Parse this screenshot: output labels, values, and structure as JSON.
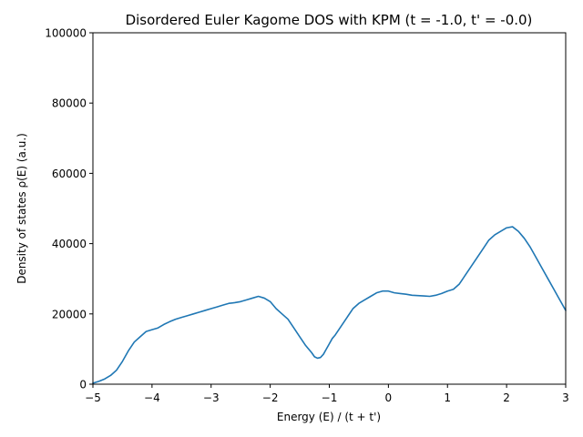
{
  "chart_data": {
    "type": "line",
    "title": "Disordered Euler Kagome DOS with KPM (t = -1.0, t' = -0.0)",
    "xlabel": "Energy (E) / (t + t')",
    "ylabel": "Density of states ρ(E) (a.u.)",
    "xlim": [
      -5,
      3
    ],
    "ylim": [
      0,
      100000
    ],
    "xticks": [
      -5,
      -4,
      -3,
      -2,
      -1,
      0,
      1,
      2,
      3
    ],
    "xtick_labels": [
      "−5",
      "−4",
      "−3",
      "−2",
      "−1",
      "0",
      "1",
      "2",
      "3"
    ],
    "yticks": [
      0,
      20000,
      40000,
      60000,
      80000,
      100000
    ],
    "ytick_labels": [
      "0",
      "20000",
      "40000",
      "60000",
      "80000",
      "100000"
    ],
    "grid": false,
    "series": [
      {
        "color": "#1f77b4",
        "x": [
          -5.0,
          -4.9,
          -4.8,
          -4.7,
          -4.6,
          -4.5,
          -4.4,
          -4.3,
          -4.2,
          -4.1,
          -4.0,
          -3.9,
          -3.8,
          -3.7,
          -3.6,
          -3.5,
          -3.4,
          -3.3,
          -3.2,
          -3.1,
          -3.0,
          -2.9,
          -2.8,
          -2.7,
          -2.6,
          -2.5,
          -2.4,
          -2.3,
          -2.2,
          -2.1,
          -2.0,
          -1.9,
          -1.8,
          -1.7,
          -1.6,
          -1.5,
          -1.4,
          -1.3,
          -1.25,
          -1.2,
          -1.15,
          -1.1,
          -1.05,
          -1.0,
          -0.95,
          -0.9,
          -0.8,
          -0.7,
          -0.6,
          -0.5,
          -0.4,
          -0.3,
          -0.2,
          -0.1,
          0.0,
          0.1,
          0.2,
          0.3,
          0.4,
          0.5,
          0.6,
          0.7,
          0.8,
          0.9,
          1.0,
          1.1,
          1.2,
          1.3,
          1.4,
          1.5,
          1.6,
          1.7,
          1.8,
          1.9,
          2.0,
          2.1,
          2.2,
          2.3,
          2.4,
          2.5,
          2.6,
          2.7,
          2.8,
          2.9,
          3.0
        ],
        "y": [
          300,
          800,
          1500,
          2500,
          4000,
          6500,
          9500,
          12000,
          13500,
          15000,
          15500,
          16000,
          17000,
          17800,
          18500,
          19000,
          19500,
          20000,
          20500,
          21000,
          21500,
          22000,
          22500,
          23000,
          23200,
          23500,
          24000,
          24500,
          25000,
          24500,
          23500,
          21500,
          20000,
          18500,
          16000,
          13500,
          11000,
          9000,
          7800,
          7400,
          7600,
          8500,
          10000,
          11500,
          13000,
          14000,
          16500,
          19000,
          21500,
          23000,
          24000,
          25000,
          26000,
          26500,
          26500,
          26000,
          25800,
          25600,
          25300,
          25200,
          25100,
          25000,
          25300,
          25800,
          26500,
          27000,
          28500,
          31000,
          33500,
          36000,
          38500,
          41000,
          42500,
          43500,
          44500,
          44800,
          43500,
          41500,
          39000,
          36000,
          33000,
          30000,
          27000,
          24000,
          21000
        ]
      }
    ]
  }
}
